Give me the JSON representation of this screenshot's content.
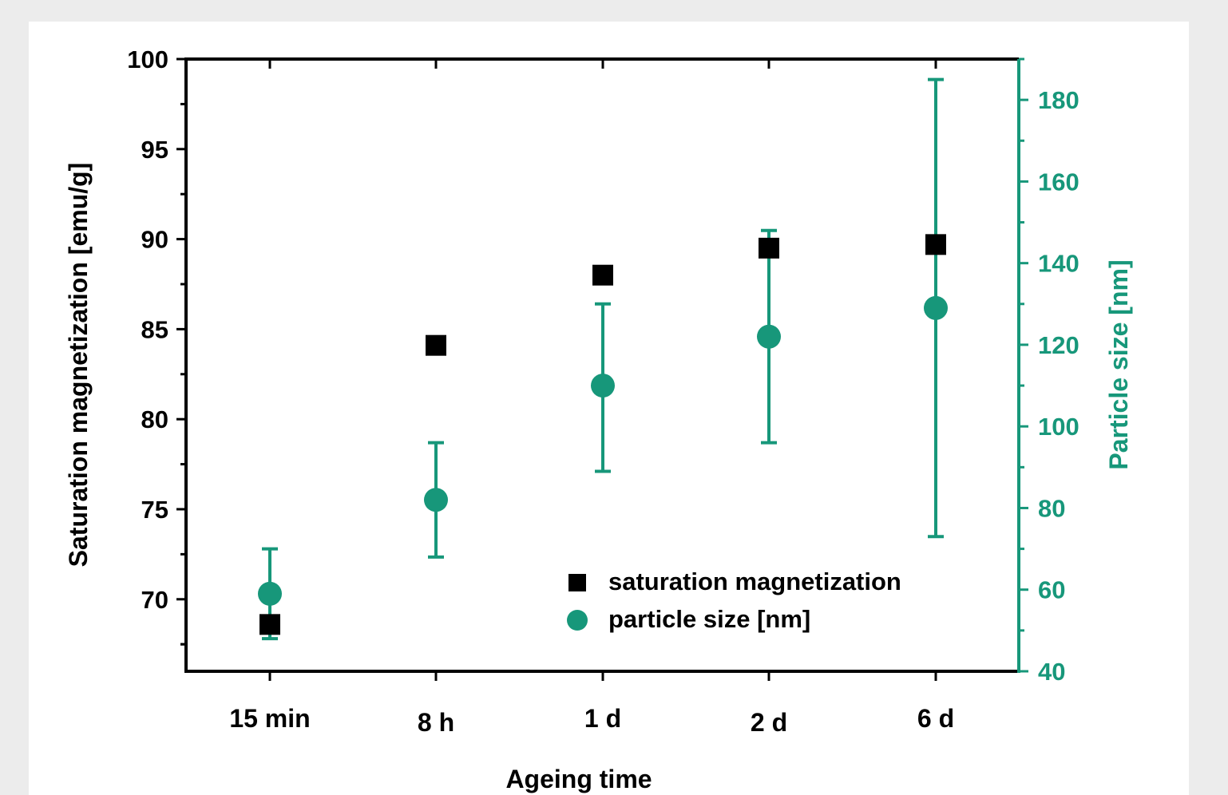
{
  "chart_data": {
    "type": "scatter",
    "categories": [
      "15 min",
      "8 h",
      "1 d",
      "2 d",
      "6 d"
    ],
    "xlabel": "Ageing time",
    "y_left": {
      "label": "Saturation magnetization [emu/g]",
      "range": [
        66.0,
        100.0
      ],
      "ticks": [
        "100",
        "95",
        "90",
        "85",
        "80",
        "75",
        "70"
      ],
      "tick_values": [
        100,
        95,
        90,
        85,
        80,
        75,
        70
      ]
    },
    "y_right": {
      "label": "Particle size [nm]",
      "range": [
        40,
        190
      ],
      "ticks": [
        "180",
        "160",
        "140",
        "120",
        "100",
        "80",
        "60",
        "40"
      ],
      "tick_values": [
        180,
        160,
        140,
        120,
        100,
        80,
        60,
        40
      ],
      "color": "#17977a"
    },
    "series": [
      {
        "name": "saturation magnetization",
        "axis": "left",
        "marker": "square",
        "color": "#000000",
        "values": [
          68.6,
          84.1,
          88.0,
          89.5,
          89.7
        ]
      },
      {
        "name": "particle size [nm]",
        "axis": "right",
        "marker": "circle",
        "color": "#17977a",
        "values": [
          59,
          82,
          110,
          122,
          129
        ],
        "error_low": [
          48,
          68,
          89,
          96,
          73
        ],
        "error_high": [
          70,
          96,
          130,
          148,
          185
        ]
      }
    ],
    "legend_position": "bottom-right",
    "grid": false
  }
}
